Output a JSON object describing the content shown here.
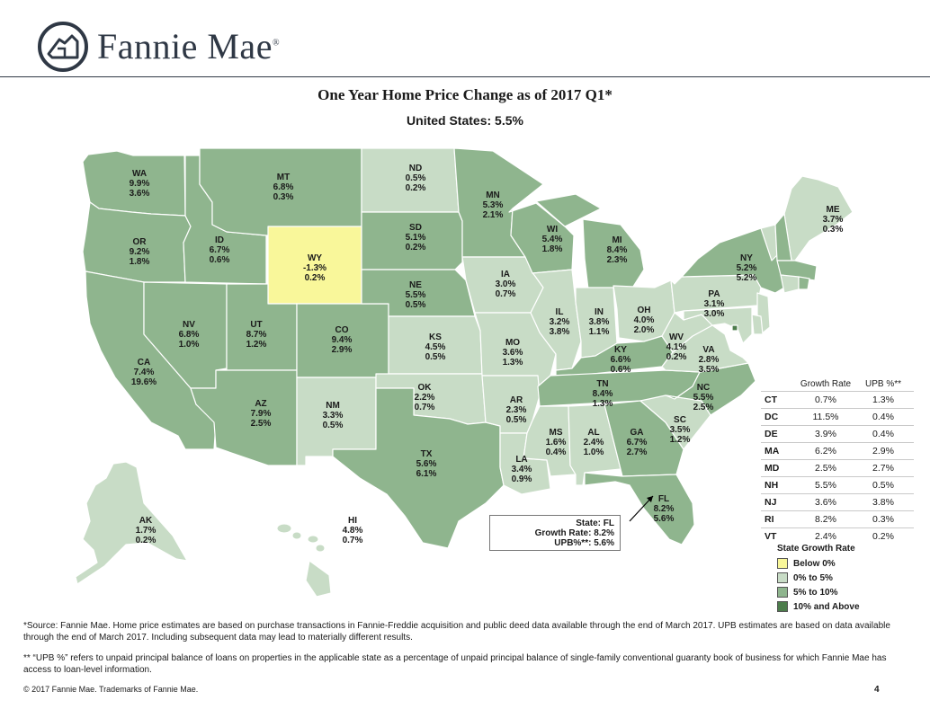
{
  "header": {
    "brand": "Fannie Mae",
    "trademark": "®",
    "title": "One Year Home Price Change as of 2017 Q1*",
    "subtitle": "United States: 5.5%"
  },
  "colors": {
    "below_0": "#f9f79a",
    "0_to_5": "#c8dcc6",
    "5_to_10": "#8fb58e",
    "10_and_above": "#4d7d4c",
    "border": "#ffffff",
    "logo_ink": "#2f3845"
  },
  "states": [
    {
      "abbr": "WA",
      "growth": "9.9%",
      "upb": "3.6%",
      "category": "5_to_10"
    },
    {
      "abbr": "OR",
      "growth": "9.2%",
      "upb": "1.8%",
      "category": "5_to_10"
    },
    {
      "abbr": "CA",
      "growth": "7.4%",
      "upb": "19.6%",
      "category": "5_to_10"
    },
    {
      "abbr": "ID",
      "growth": "6.7%",
      "upb": "0.6%",
      "category": "5_to_10"
    },
    {
      "abbr": "NV",
      "growth": "6.8%",
      "upb": "1.0%",
      "category": "5_to_10"
    },
    {
      "abbr": "MT",
      "growth": "6.8%",
      "upb": "0.3%",
      "category": "5_to_10"
    },
    {
      "abbr": "WY",
      "growth": "-1.3%",
      "upb": "0.2%",
      "category": "below_0"
    },
    {
      "abbr": "UT",
      "growth": "8.7%",
      "upb": "1.2%",
      "category": "5_to_10"
    },
    {
      "abbr": "AZ",
      "growth": "7.9%",
      "upb": "2.5%",
      "category": "5_to_10"
    },
    {
      "abbr": "CO",
      "growth": "9.4%",
      "upb": "2.9%",
      "category": "5_to_10"
    },
    {
      "abbr": "NM",
      "growth": "3.3%",
      "upb": "0.5%",
      "category": "0_to_5"
    },
    {
      "abbr": "ND",
      "growth": "0.5%",
      "upb": "0.2%",
      "category": "0_to_5"
    },
    {
      "abbr": "SD",
      "growth": "5.1%",
      "upb": "0.2%",
      "category": "5_to_10"
    },
    {
      "abbr": "NE",
      "growth": "5.5%",
      "upb": "0.5%",
      "category": "5_to_10"
    },
    {
      "abbr": "KS",
      "growth": "4.5%",
      "upb": "0.5%",
      "category": "0_to_5"
    },
    {
      "abbr": "OK",
      "growth": "2.2%",
      "upb": "0.7%",
      "category": "0_to_5"
    },
    {
      "abbr": "TX",
      "growth": "5.6%",
      "upb": "6.1%",
      "category": "5_to_10"
    },
    {
      "abbr": "MN",
      "growth": "5.3%",
      "upb": "2.1%",
      "category": "5_to_10"
    },
    {
      "abbr": "IA",
      "growth": "3.0%",
      "upb": "0.7%",
      "category": "0_to_5"
    },
    {
      "abbr": "MO",
      "growth": "3.6%",
      "upb": "1.3%",
      "category": "0_to_5"
    },
    {
      "abbr": "AR",
      "growth": "2.3%",
      "upb": "0.5%",
      "category": "0_to_5"
    },
    {
      "abbr": "LA",
      "growth": "3.4%",
      "upb": "0.9%",
      "category": "0_to_5"
    },
    {
      "abbr": "WI",
      "growth": "5.4%",
      "upb": "1.8%",
      "category": "5_to_10"
    },
    {
      "abbr": "IL",
      "growth": "3.2%",
      "upb": "3.8%",
      "category": "0_to_5"
    },
    {
      "abbr": "MI",
      "growth": "8.4%",
      "upb": "2.3%",
      "category": "5_to_10"
    },
    {
      "abbr": "IN",
      "growth": "3.8%",
      "upb": "1.1%",
      "category": "0_to_5"
    },
    {
      "abbr": "OH",
      "growth": "4.0%",
      "upb": "2.0%",
      "category": "0_to_5"
    },
    {
      "abbr": "KY",
      "growth": "6.6%",
      "upb": "0.6%",
      "category": "5_to_10"
    },
    {
      "abbr": "TN",
      "growth": "8.4%",
      "upb": "1.3%",
      "category": "5_to_10"
    },
    {
      "abbr": "MS",
      "growth": "1.6%",
      "upb": "0.4%",
      "category": "0_to_5"
    },
    {
      "abbr": "AL",
      "growth": "2.4%",
      "upb": "1.0%",
      "category": "0_to_5"
    },
    {
      "abbr": "GA",
      "growth": "6.7%",
      "upb": "2.7%",
      "category": "5_to_10"
    },
    {
      "abbr": "FL",
      "growth": "8.2%",
      "upb": "5.6%",
      "category": "5_to_10"
    },
    {
      "abbr": "SC",
      "growth": "3.5%",
      "upb": "1.2%",
      "category": "0_to_5"
    },
    {
      "abbr": "NC",
      "growth": "5.5%",
      "upb": "2.5%",
      "category": "5_to_10"
    },
    {
      "abbr": "VA",
      "growth": "2.8%",
      "upb": "3.5%",
      "category": "0_to_5"
    },
    {
      "abbr": "WV",
      "growth": "4.1%",
      "upb": "0.2%",
      "category": "0_to_5"
    },
    {
      "abbr": "PA",
      "growth": "3.1%",
      "upb": "3.0%",
      "category": "0_to_5"
    },
    {
      "abbr": "NY",
      "growth": "5.2%",
      "upb": "5.2%",
      "category": "5_to_10"
    },
    {
      "abbr": "ME",
      "growth": "3.7%",
      "upb": "0.3%",
      "category": "0_to_5"
    },
    {
      "abbr": "AK",
      "growth": "1.7%",
      "upb": "0.2%",
      "category": "0_to_5"
    },
    {
      "abbr": "HI",
      "growth": "4.8%",
      "upb": "0.7%",
      "category": "0_to_5"
    }
  ],
  "unlabeled_states": [
    {
      "abbr": "VT",
      "category": "0_to_5"
    },
    {
      "abbr": "NH",
      "category": "5_to_10"
    },
    {
      "abbr": "MA",
      "category": "5_to_10"
    },
    {
      "abbr": "CT",
      "category": "0_to_5"
    },
    {
      "abbr": "RI",
      "category": "5_to_10"
    },
    {
      "abbr": "NJ",
      "category": "0_to_5"
    },
    {
      "abbr": "DE",
      "category": "0_to_5"
    },
    {
      "abbr": "MD",
      "category": "0_to_5"
    },
    {
      "abbr": "DC",
      "category": "10_and_above"
    }
  ],
  "table": {
    "headers": [
      "",
      "Growth Rate",
      "UPB %**"
    ],
    "rows": [
      [
        "CT",
        "0.7%",
        "1.3%"
      ],
      [
        "DC",
        "11.5%",
        "0.4%"
      ],
      [
        "DE",
        "3.9%",
        "0.4%"
      ],
      [
        "MA",
        "6.2%",
        "2.9%"
      ],
      [
        "MD",
        "2.5%",
        "2.7%"
      ],
      [
        "NH",
        "5.5%",
        "0.5%"
      ],
      [
        "NJ",
        "3.6%",
        "3.8%"
      ],
      [
        "RI",
        "8.2%",
        "0.3%"
      ],
      [
        "VT",
        "2.4%",
        "0.2%"
      ]
    ]
  },
  "legend": {
    "title": "State Growth Rate",
    "items": [
      {
        "label": "Below 0%",
        "key": "below_0"
      },
      {
        "label": "0% to 5%",
        "key": "0_to_5"
      },
      {
        "label": "5% to 10%",
        "key": "5_to_10"
      },
      {
        "label": "10% and Above",
        "key": "10_and_above"
      }
    ]
  },
  "callout": {
    "line1": "State: FL",
    "line2": "Growth Rate: 8.2%",
    "line3": "UPB%**: 5.6%"
  },
  "footnotes": {
    "source": "*Source: Fannie Mae. Home price estimates are based on purchase transactions in Fannie-Freddie acquisition and public deed data available through the end of March 2017. UPB estimates are based on data available through the end of March 2017. Including subsequent data may lead to materially different results.",
    "upb_note": "** “UPB %” refers to unpaid principal balance of loans on properties in the applicable state as a percentage of unpaid principal balance of single-family conventional guaranty book of business for which Fannie Mae has access to loan-level information.",
    "copyright": "© 2017 Fannie Mae. Trademarks of Fannie Mae.",
    "page_number": "4"
  }
}
